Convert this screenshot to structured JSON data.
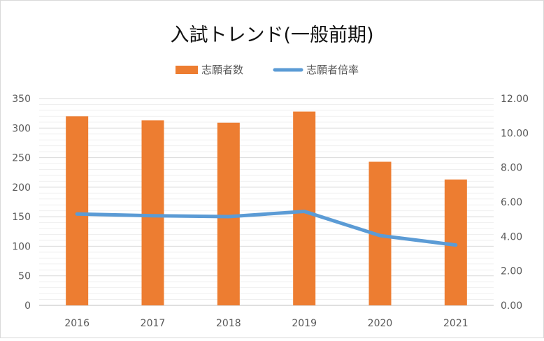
{
  "chart_data": {
    "type": "bar",
    "title": "入試トレンド(一般前期)",
    "categories": [
      "2016",
      "2017",
      "2018",
      "2019",
      "2020",
      "2021"
    ],
    "series": [
      {
        "name": "志願者数",
        "type": "bar",
        "axis": "left",
        "color": "#ED7D31",
        "values": [
          320,
          313,
          309,
          328,
          243,
          213
        ]
      },
      {
        "name": "志願者倍率",
        "type": "line",
        "axis": "right",
        "color": "#5B9BD5",
        "values": [
          5.3,
          5.2,
          5.15,
          5.45,
          4.05,
          3.5
        ]
      }
    ],
    "left_axis": {
      "ylim": [
        0,
        350
      ],
      "ticks": [
        "0",
        "50",
        "100",
        "150",
        "200",
        "250",
        "300",
        "350"
      ]
    },
    "right_axis": {
      "ylim": [
        0,
        12
      ],
      "ticks": [
        "0.00",
        "2.00",
        "4.00",
        "6.00",
        "8.00",
        "10.00",
        "12.00"
      ]
    },
    "legend": {
      "position": "top"
    },
    "grid": true
  }
}
